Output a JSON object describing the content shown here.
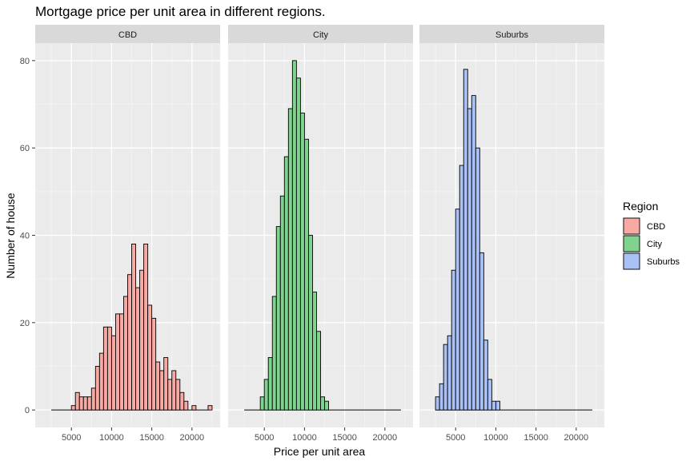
{
  "chart_data": {
    "type": "histogram-facet",
    "title": "Mortgage price per unit area in different regions.",
    "xlabel": "Price per unit area",
    "ylabel": "Number of house",
    "xlim": [
      500,
      23500
    ],
    "ylim": [
      -4,
      84
    ],
    "x_ticks": [
      5000,
      10000,
      15000,
      20000
    ],
    "x_tick_labels": [
      "5000",
      "10000",
      "15000",
      "20000"
    ],
    "y_ticks": [
      0,
      20,
      40,
      60,
      80
    ],
    "y_tick_labels": [
      "0",
      "20",
      "40",
      "60",
      "80"
    ],
    "bin_width": 500,
    "range": [
      2500,
      22000
    ],
    "legend": {
      "title": "Region",
      "placement": "right",
      "entries": [
        "CBD",
        "City",
        "Suburbs"
      ]
    },
    "panels": [
      {
        "name": "CBD",
        "color": "#F8A9A3",
        "bins_start": 5000,
        "counts": [
          1,
          4,
          3,
          3,
          3,
          5,
          10,
          13,
          19,
          19,
          17,
          22,
          22,
          26,
          31,
          38,
          28,
          32,
          38,
          24,
          21,
          11,
          9,
          12,
          7,
          9,
          7,
          4,
          2,
          0,
          1,
          0,
          0,
          0,
          1
        ]
      },
      {
        "name": "City",
        "color": "#7FD38F",
        "bins_start": 4500,
        "counts": [
          3,
          7,
          12,
          26,
          42,
          49,
          58,
          69,
          80,
          76,
          68,
          62,
          40,
          27,
          18,
          3,
          2
        ]
      },
      {
        "name": "Suburbs",
        "color": "#A9C1F6",
        "bins_start": 2500,
        "counts": [
          3,
          6,
          15,
          17,
          32,
          46,
          56,
          78,
          69,
          72,
          60,
          36,
          16,
          7,
          2,
          2
        ]
      }
    ]
  }
}
